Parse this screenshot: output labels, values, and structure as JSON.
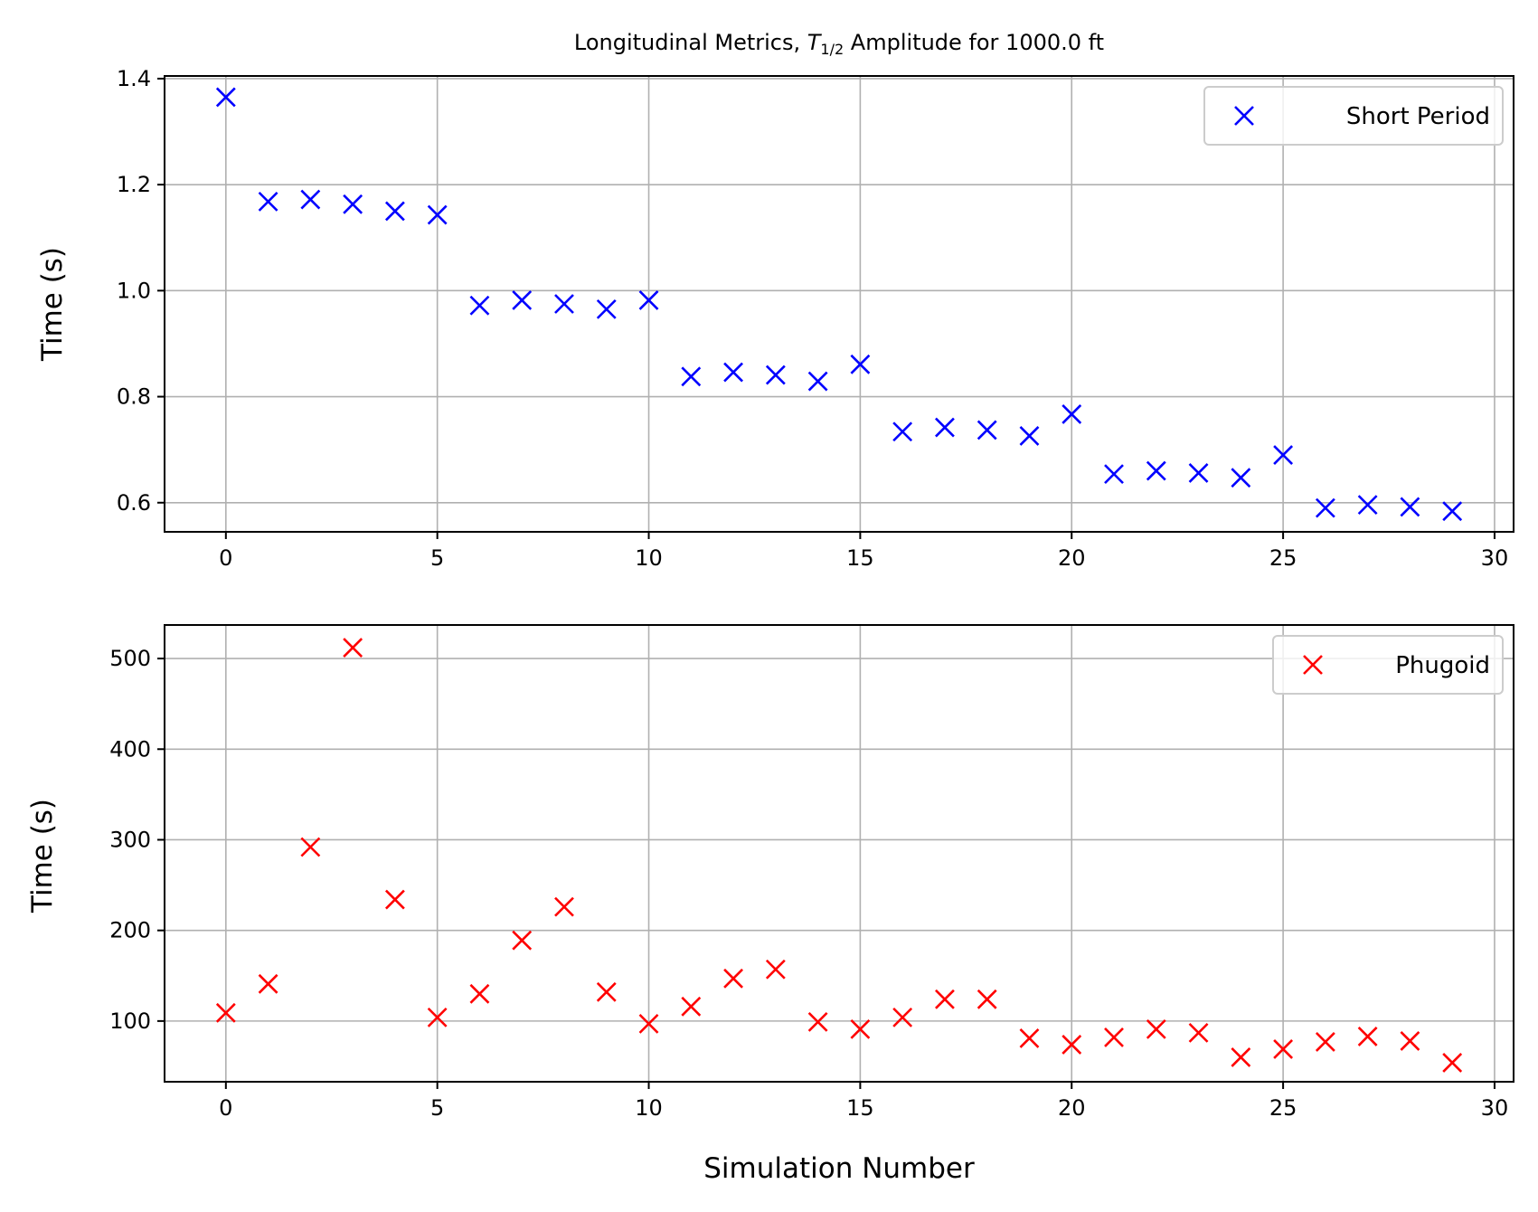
{
  "chart_data": [
    {
      "type": "scatter",
      "title_prefix": "Longitudinal Metrics, ",
      "title_math_T": "T",
      "title_math_sub": "1/2",
      "title_suffix": " Amplitude for 1000.0 ft",
      "xlabel": "",
      "ylabel": "Time (s)",
      "xlim": [
        -1.45,
        30.45
      ],
      "ylim": [
        0.545,
        1.405
      ],
      "xticks": [
        "0",
        "5",
        "10",
        "15",
        "20",
        "25",
        "30"
      ],
      "yticks": [
        "0.6",
        "0.8",
        "1.0",
        "1.2",
        "1.4"
      ],
      "grid": true,
      "legend_position": "top-right",
      "marker": "x",
      "series": [
        {
          "name": "Short Period",
          "color": "#0000ff",
          "x": [
            0,
            1,
            2,
            3,
            4,
            5,
            6,
            7,
            8,
            9,
            10,
            11,
            12,
            13,
            14,
            15,
            16,
            17,
            18,
            19,
            20,
            21,
            22,
            23,
            24,
            25,
            26,
            27,
            28,
            29
          ],
          "y": [
            1.365,
            1.168,
            1.172,
            1.163,
            1.15,
            1.143,
            0.972,
            0.982,
            0.975,
            0.965,
            0.982,
            0.838,
            0.846,
            0.841,
            0.829,
            0.861,
            0.734,
            0.742,
            0.737,
            0.726,
            0.767,
            0.654,
            0.66,
            0.656,
            0.647,
            0.69,
            0.59,
            0.596,
            0.592,
            0.584
          ]
        }
      ]
    },
    {
      "type": "scatter",
      "xlabel": "Simulation Number",
      "ylabel": "Time (s)",
      "xlim": [
        -1.45,
        30.45
      ],
      "ylim": [
        33,
        537
      ],
      "xticks": [
        "0",
        "5",
        "10",
        "15",
        "20",
        "25",
        "30"
      ],
      "yticks": [
        "100",
        "200",
        "300",
        "400",
        "500"
      ],
      "grid": true,
      "legend_position": "top-right",
      "marker": "x",
      "series": [
        {
          "name": "Phugoid",
          "color": "#ff0000",
          "x": [
            0,
            1,
            2,
            3,
            4,
            5,
            6,
            7,
            8,
            9,
            10,
            11,
            12,
            13,
            14,
            15,
            16,
            17,
            18,
            19,
            20,
            21,
            22,
            23,
            24,
            25,
            26,
            27,
            28,
            29
          ],
          "y": [
            109,
            141,
            292,
            512,
            234,
            104,
            130,
            189,
            226,
            132,
            97,
            116,
            147,
            157,
            99,
            91,
            104,
            124,
            124,
            81,
            74,
            82,
            91,
            87,
            60,
            69,
            77,
            83,
            78,
            54
          ]
        }
      ]
    }
  ]
}
